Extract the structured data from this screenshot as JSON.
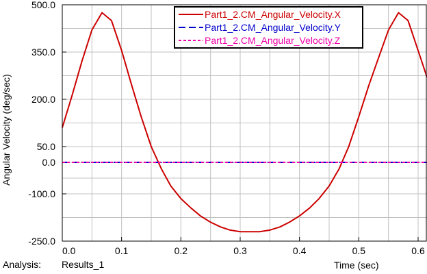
{
  "chart_data": {
    "type": "line",
    "xlabel": "Time (sec)",
    "ylabel": "Angular Velocity (deg/sec)",
    "xlim": [
      0.0,
      0.615
    ],
    "ylim": [
      -250.0,
      500.0
    ],
    "x_ticks": [
      0.0,
      0.1,
      0.2,
      0.3,
      0.4,
      0.5,
      0.6
    ],
    "x_tick_labels": [
      "0.0",
      "0.1",
      "0.2",
      "0.3",
      "0.4",
      "0.5",
      "0.6"
    ],
    "y_ticks": [
      -250.0,
      -100.0,
      0.0,
      50.0,
      200.0,
      350.0,
      500.0
    ],
    "y_tick_labels": [
      "-250.0",
      "-100.0",
      "0.0",
      "50.0",
      "200.0",
      "350.0",
      "500.0"
    ],
    "grid": true,
    "legend_position": "top-right",
    "series": [
      {
        "name": "Part1_2.CM_Angular_Velocity.X",
        "color": "#cc0000",
        "dash": "solid",
        "x": [
          0.0,
          0.017,
          0.033,
          0.05,
          0.067,
          0.083,
          0.1,
          0.117,
          0.133,
          0.15,
          0.167,
          0.183,
          0.2,
          0.217,
          0.233,
          0.25,
          0.267,
          0.283,
          0.3,
          0.317,
          0.333,
          0.35,
          0.367,
          0.383,
          0.4,
          0.417,
          0.433,
          0.45,
          0.467,
          0.483,
          0.5,
          0.517,
          0.533,
          0.55,
          0.567,
          0.583,
          0.6,
          0.615
        ],
        "y": [
          110,
          215,
          320,
          420,
          475,
          450,
          355,
          245,
          145,
          50,
          -20,
          -75,
          -115,
          -145,
          -170,
          -190,
          -205,
          -215,
          -220,
          -220,
          -220,
          -215,
          -205,
          -190,
          -170,
          -145,
          -115,
          -75,
          -20,
          50,
          145,
          245,
          330,
          420,
          475,
          450,
          355,
          270
        ]
      },
      {
        "name": "Part1_2.CM_Angular_Velocity.Y",
        "color": "#0000cc",
        "dash": "dashed",
        "x": [
          0.0,
          0.615
        ],
        "y": [
          0.0,
          0.0
        ]
      },
      {
        "name": "Part1_2.CM_Angular_Velocity.Z",
        "color": "#ee00aa",
        "dash": "dotted",
        "x": [
          0.0,
          0.615
        ],
        "y": [
          0.0,
          0.0
        ]
      }
    ]
  },
  "footer": {
    "analysis_label": "Analysis:",
    "analysis_name": "Results_1"
  }
}
